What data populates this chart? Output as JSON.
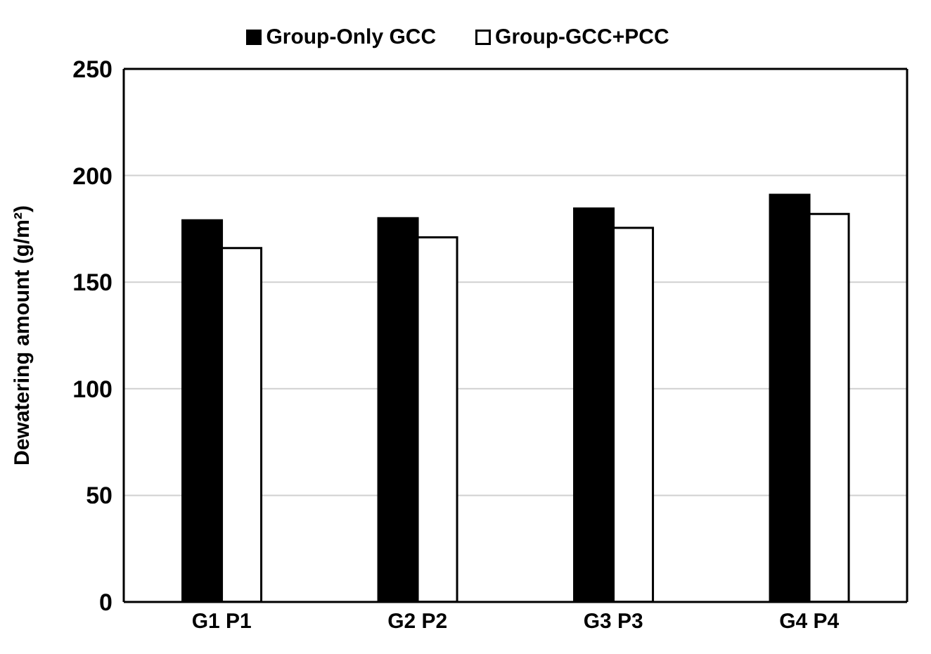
{
  "chart_data": {
    "type": "bar",
    "ylabel": "Dewatering amount (g/m²)",
    "categories": [
      "G1 P1",
      "G2 P2",
      "G3 P3",
      "G4 P4"
    ],
    "series": [
      {
        "name": "Group-Only GCC",
        "color": "#000000",
        "values": [
          179,
          180,
          184.5,
          191
        ]
      },
      {
        "name": "Group-GCC+PCC",
        "color": "#ffffff",
        "values": [
          166,
          171,
          175.5,
          182
        ]
      }
    ],
    "ylim": [
      0,
      250
    ],
    "yticks": [
      0,
      50,
      100,
      150,
      200,
      250
    ],
    "grid": "y",
    "legend": "top"
  }
}
